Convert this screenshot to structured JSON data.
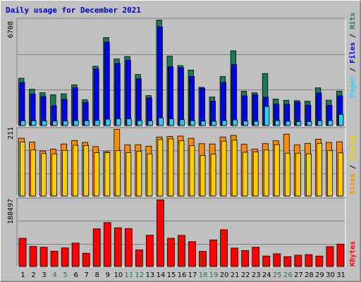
{
  "title": "Daily usage for December 2021",
  "colors": {
    "background": "#c0c0c0",
    "plot": "#c0c0c0",
    "title": "#0000cc",
    "hits": "#1a7a55",
    "files": "#0000ee",
    "pages": "#33ccff",
    "visits": "#ffcc00",
    "sites": "#ff8c00",
    "kbytes": "#ff0000",
    "weekday": "#000000",
    "weekend": "#1a7a55"
  },
  "legend": {
    "pages": "Pages",
    "files": "Files",
    "hits": "Hits",
    "sites": "Sites",
    "visits": "Visits",
    "kbytes": "KBytes",
    "sep": " / "
  },
  "chart_data": {
    "type": "bar",
    "x": [
      1,
      2,
      3,
      4,
      5,
      6,
      7,
      8,
      9,
      10,
      11,
      12,
      13,
      14,
      15,
      16,
      17,
      18,
      19,
      20,
      21,
      22,
      23,
      24,
      25,
      26,
      27,
      28,
      29,
      30,
      31
    ],
    "weekend_days": [
      4,
      5,
      11,
      12,
      18,
      19,
      25,
      26
    ],
    "panels": [
      {
        "id": "hits",
        "ymax_label": "6708",
        "ylim": [
          0,
          6708
        ],
        "series": [
          {
            "name": "Hits",
            "color_key": "hits",
            "values": [
              3020,
              2320,
              2100,
              1970,
              2030,
              2600,
              1650,
              3780,
              5600,
              4240,
              4400,
              3260,
              1920,
              6708,
              4420,
              3820,
              3540,
              2440,
              1830,
              3130,
              4760,
              2200,
              2100,
              3320,
              1700,
              1620,
              1600,
              1560,
              2410,
              1630,
              2200
            ]
          },
          {
            "name": "Files",
            "color_key": "files",
            "values": [
              2750,
              2020,
              1860,
              1280,
              1680,
              2420,
              1480,
              3600,
              5300,
              3960,
              4150,
              2980,
              1770,
              6280,
              3750,
              3700,
              3140,
              2380,
              1560,
              2750,
              3890,
              1900,
              1980,
              1820,
              1380,
              1360,
              1500,
              1310,
              2080,
              1300,
              1900
            ]
          },
          {
            "name": "Pages",
            "color_key": "pages",
            "values": [
              320,
              320,
              310,
              300,
              300,
              330,
              320,
              340,
              420,
              450,
              440,
              330,
              310,
              500,
              440,
              390,
              330,
              300,
              290,
              330,
              380,
              300,
              290,
              1230,
              330,
              290,
              270,
              270,
              320,
              330,
              720
            ]
          }
        ]
      },
      {
        "id": "sites",
        "ymax_label": "211",
        "ylim": [
          0,
          211
        ],
        "series": [
          {
            "name": "Visits",
            "color_key": "visits",
            "values": [
              171,
              146,
              135,
              134,
              145,
              161,
              160,
              138,
              138,
              144,
              138,
              142,
              134,
              179,
              181,
              175,
              160,
              129,
              133,
              174,
              177,
              139,
              140,
              146,
              163,
              136,
              136,
              134,
              167,
              144,
              137
            ]
          },
          {
            "name": "Sites",
            "color_key": "sites",
            "values": [
              183,
              171,
              143,
              149,
              165,
              176,
              170,
              157,
              141,
              211,
              162,
              163,
              158,
              187,
              189,
              190,
              183,
              166,
              165,
              187,
              192,
              164,
              149,
              166,
              175,
              196,
              162,
              167,
              180,
              170,
              172
            ]
          }
        ]
      },
      {
        "id": "kbytes",
        "ymax_label": "188497",
        "ylim": [
          0,
          188497
        ],
        "series": [
          {
            "name": "KBytes",
            "color_key": "kbytes",
            "values": [
              80400,
              57300,
              55100,
              44100,
              53400,
              66800,
              38300,
              107100,
              124500,
              109800,
              107700,
              47800,
              89000,
              188497,
              80400,
              88500,
              70700,
              43500,
              75900,
              104300,
              52800,
              45900,
              55100,
              30400,
              36800,
              28700,
              32700,
              34500,
              30400,
              56900,
              63900
            ]
          }
        ]
      }
    ]
  }
}
